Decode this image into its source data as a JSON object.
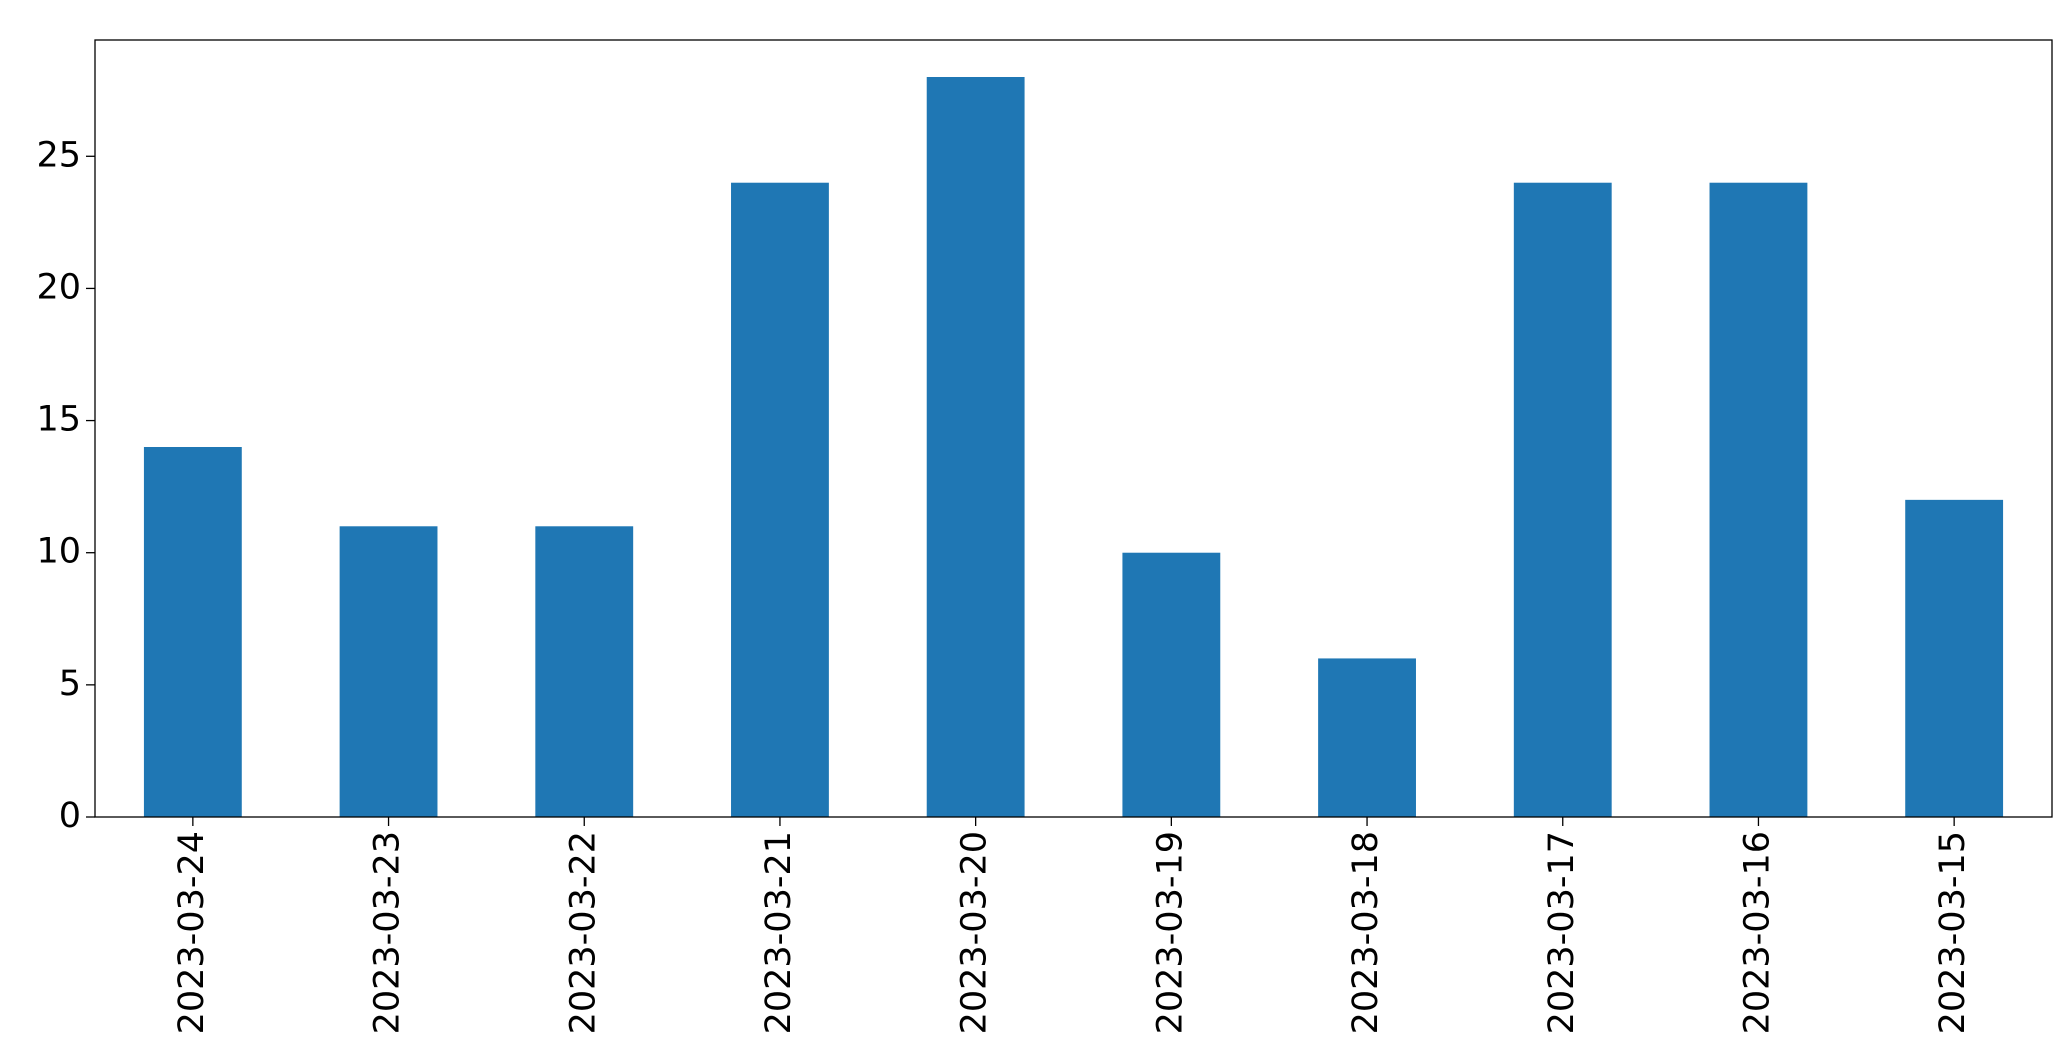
{
  "chart_data": {
    "type": "bar",
    "categories": [
      "2023-03-24",
      "2023-03-23",
      "2023-03-22",
      "2023-03-21",
      "2023-03-20",
      "2023-03-19",
      "2023-03-18",
      "2023-03-17",
      "2023-03-16",
      "2023-03-15"
    ],
    "values": [
      14,
      11,
      11,
      24,
      28,
      10,
      6,
      24,
      24,
      12
    ],
    "color": "#1f77b4",
    "ylim": [
      0,
      29.4
    ],
    "yticks": [
      0,
      5,
      10,
      15,
      20,
      25
    ],
    "grid": false
  }
}
